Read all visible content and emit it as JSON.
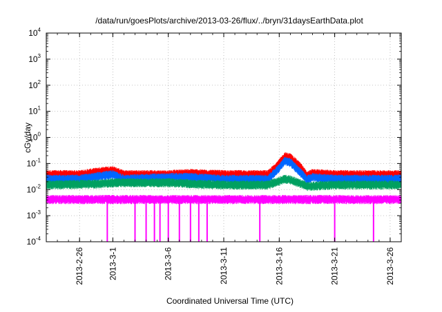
{
  "chart_data": {
    "type": "line",
    "title": "/data/run/goesPlots/archive/2013-03-26/flux/../bryn/31daysEarthData.plot",
    "xlabel": "Coordinated Universal Time (UTC)",
    "ylabel": "cGy/day",
    "yscale": "log",
    "ylim": [
      0.0001,
      10000
    ],
    "xlim": [
      "2013-02-23",
      "2013-03-27"
    ],
    "grid": true,
    "y_ticks": [
      {
        "value": 0.0001,
        "base": "10",
        "exp": "-4"
      },
      {
        "value": 0.001,
        "base": "10",
        "exp": "-3"
      },
      {
        "value": 0.01,
        "base": "10",
        "exp": "-2"
      },
      {
        "value": 0.1,
        "base": "10",
        "exp": "-1"
      },
      {
        "value": 1,
        "base": "10",
        "exp": "0"
      },
      {
        "value": 10,
        "base": "10",
        "exp": "1"
      },
      {
        "value": 100,
        "base": "10",
        "exp": "2"
      },
      {
        "value": 1000,
        "base": "10",
        "exp": "3"
      },
      {
        "value": 10000,
        "base": "10",
        "exp": "4"
      }
    ],
    "x_ticks": [
      {
        "date": "2013-02-26",
        "label": "2013-2-26"
      },
      {
        "date": "2013-03-01",
        "label": "2013-3-1"
      },
      {
        "date": "2013-03-06",
        "label": "2013-3-6"
      },
      {
        "date": "2013-03-11",
        "label": "2013-3-11"
      },
      {
        "date": "2013-03-16",
        "label": "2013-3-16"
      },
      {
        "date": "2013-03-21",
        "label": "2013-3-21"
      },
      {
        "date": "2013-03-26",
        "label": "2013-3-26"
      }
    ],
    "series": [
      {
        "color": "#ff0000",
        "points": [
          [
            "2013-02-23",
            0.045
          ],
          [
            "2013-02-26",
            0.045
          ],
          [
            "2013-02-28",
            0.06
          ],
          [
            "2013-03-01",
            0.065
          ],
          [
            "2013-03-02",
            0.045
          ],
          [
            "2013-03-06",
            0.045
          ],
          [
            "2013-03-08",
            0.05
          ],
          [
            "2013-03-11",
            0.045
          ],
          [
            "2013-03-15",
            0.045
          ],
          [
            "2013-03-16",
            0.12
          ],
          [
            "2013-03-16T12:00",
            0.22
          ],
          [
            "2013-03-17",
            0.2
          ],
          [
            "2013-03-17T12:00",
            0.13
          ],
          [
            "2013-03-18",
            0.08
          ],
          [
            "2013-03-18T12:00",
            0.04
          ],
          [
            "2013-03-19",
            0.05
          ],
          [
            "2013-03-21",
            0.045
          ],
          [
            "2013-03-27",
            0.045
          ]
        ]
      },
      {
        "color": "#0066ff",
        "points": [
          [
            "2013-02-23",
            0.03
          ],
          [
            "2013-02-26",
            0.03
          ],
          [
            "2013-02-28",
            0.04
          ],
          [
            "2013-03-01",
            0.045
          ],
          [
            "2013-03-02",
            0.03
          ],
          [
            "2013-03-06",
            0.035
          ],
          [
            "2013-03-08",
            0.035
          ],
          [
            "2013-03-11",
            0.03
          ],
          [
            "2013-03-15",
            0.03
          ],
          [
            "2013-03-16",
            0.08
          ],
          [
            "2013-03-16T12:00",
            0.15
          ],
          [
            "2013-03-17",
            0.13
          ],
          [
            "2013-03-17T12:00",
            0.08
          ],
          [
            "2013-03-18",
            0.05
          ],
          [
            "2013-03-18T12:00",
            0.028
          ],
          [
            "2013-03-19",
            0.035
          ],
          [
            "2013-03-21",
            0.03
          ],
          [
            "2013-03-27",
            0.03
          ]
        ]
      },
      {
        "color": "#00a060",
        "points": [
          [
            "2013-02-23",
            0.018
          ],
          [
            "2013-02-28",
            0.02
          ],
          [
            "2013-03-01",
            0.022
          ],
          [
            "2013-03-06",
            0.022
          ],
          [
            "2013-03-08",
            0.02
          ],
          [
            "2013-03-11",
            0.018
          ],
          [
            "2013-03-15",
            0.018
          ],
          [
            "2013-03-16T12:00",
            0.03
          ],
          [
            "2013-03-17",
            0.028
          ],
          [
            "2013-03-18",
            0.02
          ],
          [
            "2013-03-18T12:00",
            0.016
          ],
          [
            "2013-03-21",
            0.018
          ],
          [
            "2013-03-27",
            0.018
          ]
        ]
      },
      {
        "color": "#ff00ff",
        "points": [
          [
            "2013-02-23",
            0.005
          ],
          [
            "2013-03-27",
            0.005
          ]
        ]
      }
    ],
    "dropouts": {
      "color": "#ff00ff",
      "dates": [
        "2013-02-28T12:00",
        "2013-03-03",
        "2013-03-04",
        "2013-03-04T18:00",
        "2013-03-05T06:00",
        "2013-03-06",
        "2013-03-07",
        "2013-03-08",
        "2013-03-08T18:00",
        "2013-03-09T12:00",
        "2013-03-14T06:00",
        "2013-03-21",
        "2013-03-24T12:00"
      ]
    }
  }
}
